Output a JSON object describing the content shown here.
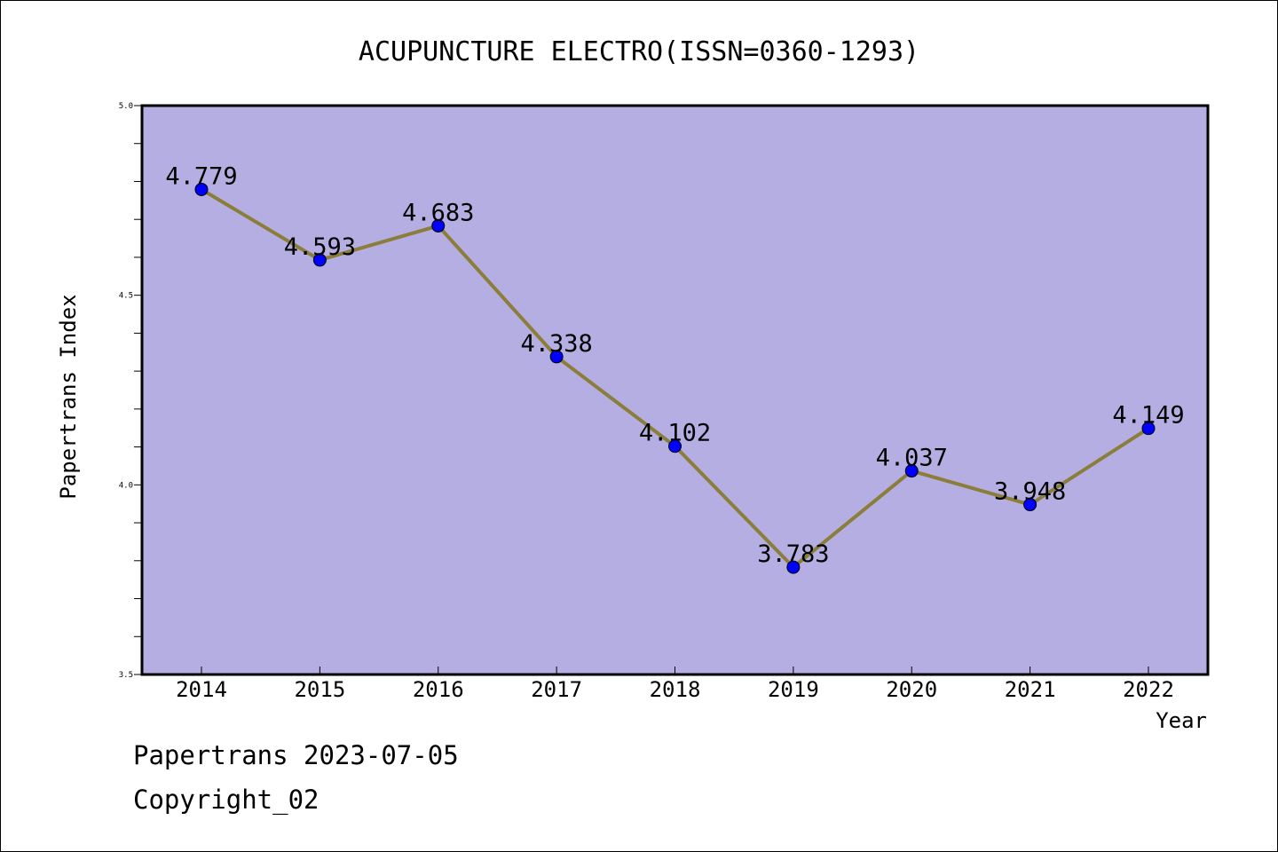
{
  "chart_data": {
    "type": "line",
    "title": "ACUPUNCTURE ELECTRO(ISSN=0360-1293)",
    "xlabel": "Year",
    "ylabel": "Papertrans Index",
    "categories": [
      "2014",
      "2015",
      "2016",
      "2017",
      "2018",
      "2019",
      "2020",
      "2021",
      "2022"
    ],
    "series": [
      {
        "values": [
          4.779,
          4.593,
          4.683,
          4.338,
          4.102,
          3.783,
          4.037,
          3.948,
          4.149
        ],
        "data_labels": [
          "4.779",
          "4.593",
          "4.683",
          "4.338",
          "4.102",
          "3.783",
          "4.037",
          "3.948",
          "4.149"
        ],
        "line_color": "#8b7d3a",
        "marker_color": "#0000ff"
      }
    ],
    "ylim": [
      3.5,
      5.0
    ],
    "yticks": [
      "3.5",
      "4.0",
      "4.5",
      "5.0"
    ],
    "grid": false,
    "plot_background": "#b5aee2"
  },
  "footer": {
    "line1": "Papertrans 2023-07-05",
    "line2": "Copyright_02"
  }
}
